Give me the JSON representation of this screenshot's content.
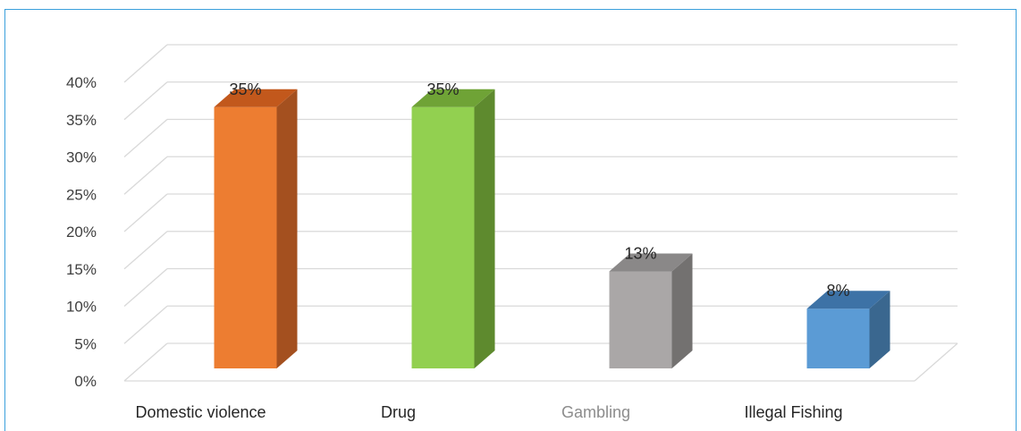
{
  "chart_data": {
    "type": "bar",
    "style": "3d-column",
    "categories": [
      "Domestic violence",
      "Drug",
      "Gambling",
      "Illegal Fishing"
    ],
    "values": [
      35,
      35,
      13,
      8
    ],
    "data_labels": [
      "35%",
      "35%",
      "13%",
      "8%"
    ],
    "colors": [
      "#ed7d31",
      "#92d050",
      "#aaa7a7",
      "#5b9bd5"
    ],
    "side_colors": [
      "#a4501f",
      "#5e8a2e",
      "#737170",
      "#3a678f"
    ],
    "top_colors": [
      "#c2581c",
      "#6fa336",
      "#8a8888",
      "#3d72a6"
    ],
    "y_ticks": [
      "0%",
      "5%",
      "10%",
      "15%",
      "20%",
      "25%",
      "30%",
      "35%",
      "40%"
    ],
    "ylim": [
      0,
      40
    ],
    "grid": true,
    "legend": "none",
    "title": "",
    "xlabel": "",
    "ylabel": ""
  }
}
